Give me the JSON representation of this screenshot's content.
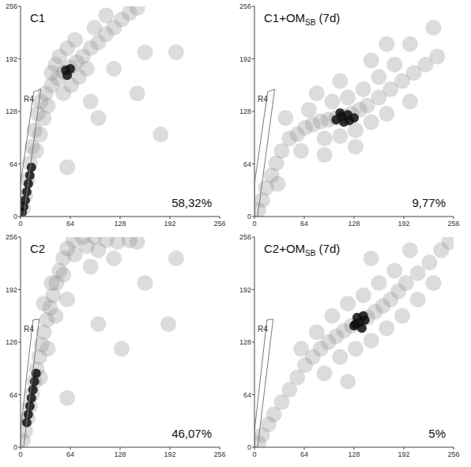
{
  "chart_data": [
    {
      "type": "scatter",
      "title": "C1",
      "annotation": "58,32%",
      "xlim": [
        0,
        256
      ],
      "ylim": [
        0,
        256
      ],
      "xticks": [
        0,
        64,
        128,
        192,
        256
      ],
      "yticks": [
        0,
        64,
        128,
        192,
        256
      ],
      "gate": {
        "label": "R4",
        "x": [
          0,
          0,
          17,
          26,
          4
        ],
        "y": [
          0,
          40,
          152,
          155,
          0
        ]
      },
      "series": [
        {
          "color": "#8c8c8c",
          "x": [
            3,
            6,
            9,
            12,
            15,
            18,
            22,
            26,
            32,
            40,
            48,
            56,
            64,
            72,
            80,
            90,
            100,
            110,
            120,
            130,
            140,
            150,
            50,
            60,
            45,
            75,
            85,
            40,
            70,
            95,
            110,
            55,
            65,
            35,
            30,
            25,
            20,
            100,
            150,
            180,
            60,
            120,
            200,
            90,
            160
          ],
          "values": [
            10,
            25,
            45,
            65,
            85,
            105,
            125,
            140,
            150,
            160,
            168,
            176,
            182,
            188,
            195,
            205,
            212,
            222,
            230,
            240,
            248,
            254,
            195,
            205,
            185,
            170,
            180,
            175,
            215,
            230,
            245,
            150,
            160,
            135,
            120,
            100,
            80,
            120,
            150,
            100,
            60,
            180,
            200,
            140,
            200
          ]
        },
        {
          "color": "#111111",
          "x": [
            2,
            4,
            6,
            8,
            10,
            12,
            14,
            58,
            64,
            60
          ],
          "values": [
            5,
            12,
            20,
            30,
            40,
            50,
            60,
            178,
            180,
            172
          ]
        }
      ]
    },
    {
      "type": "scatter",
      "title": "C1+OMSB (7d)",
      "title_subscript": "SB",
      "annotation": "9,77%",
      "xlim": [
        0,
        256
      ],
      "ylim": [
        0,
        256
      ],
      "xticks": [
        0,
        64,
        128,
        192,
        256
      ],
      "yticks": [
        0,
        64,
        128,
        192,
        256
      ],
      "gate": {
        "label": "R4",
        "x": [
          0,
          0,
          17,
          26,
          4
        ],
        "y": [
          0,
          40,
          152,
          155,
          0
        ]
      },
      "series": [
        {
          "color": "#8c8c8c",
          "x": [
            5,
            10,
            15,
            22,
            28,
            35,
            45,
            55,
            65,
            75,
            85,
            95,
            105,
            115,
            125,
            135,
            145,
            160,
            175,
            190,
            205,
            220,
            235,
            100,
            120,
            140,
            160,
            180,
            90,
            110,
            130,
            150,
            170,
            70,
            80,
            110,
            150,
            200,
            60,
            90,
            130,
            200,
            230,
            170,
            40,
            30
          ],
          "values": [
            8,
            20,
            35,
            50,
            65,
            80,
            95,
            100,
            108,
            112,
            116,
            118,
            120,
            122,
            125,
            130,
            135,
            145,
            155,
            165,
            175,
            185,
            195,
            140,
            145,
            155,
            170,
            185,
            95,
            98,
            105,
            115,
            125,
            130,
            150,
            165,
            190,
            210,
            80,
            75,
            85,
            140,
            230,
            210,
            120,
            40
          ]
        },
        {
          "color": "#111111",
          "x": [
            105,
            112,
            120,
            128,
            115,
            110,
            122
          ],
          "values": [
            118,
            122,
            124,
            120,
            115,
            126,
            117
          ]
        }
      ]
    },
    {
      "type": "scatter",
      "title": "C2",
      "annotation": "46,07%",
      "xlim": [
        0,
        256
      ],
      "ylim": [
        0,
        256
      ],
      "xticks": [
        0,
        64,
        128,
        192,
        256
      ],
      "yticks": [
        0,
        64,
        128,
        192,
        256
      ],
      "gate": {
        "label": "R4",
        "x": [
          0,
          0,
          16,
          24,
          4
        ],
        "y": [
          0,
          20,
          155,
          156,
          0
        ]
      },
      "series": [
        {
          "color": "#8c8c8c",
          "x": [
            3,
            6,
            9,
            12,
            15,
            18,
            21,
            24,
            27,
            30,
            34,
            38,
            42,
            46,
            50,
            55,
            60,
            68,
            80,
            95,
            110,
            125,
            140,
            70,
            85,
            100,
            40,
            30,
            55,
            45,
            35,
            25,
            60,
            90,
            120,
            150,
            100,
            160,
            200,
            130,
            190,
            60
          ],
          "values": [
            8,
            20,
            35,
            50,
            65,
            80,
            95,
            110,
            125,
            140,
            155,
            170,
            185,
            200,
            215,
            230,
            242,
            252,
            256,
            256,
            252,
            250,
            252,
            235,
            245,
            240,
            200,
            175,
            210,
            160,
            120,
            85,
            180,
            220,
            230,
            250,
            150,
            200,
            230,
            120,
            150,
            60
          ]
        },
        {
          "color": "#111111",
          "x": [
            8,
            10,
            12,
            14,
            16,
            18,
            20
          ],
          "values": [
            30,
            40,
            50,
            60,
            70,
            80,
            90
          ]
        }
      ]
    },
    {
      "type": "scatter",
      "title": "C2+OMSB (7d)",
      "title_subscript": "SB",
      "annotation": "5%",
      "xlim": [
        0,
        256
      ],
      "ylim": [
        0,
        256
      ],
      "xticks": [
        0,
        64,
        128,
        192,
        256
      ],
      "yticks": [
        0,
        64,
        128,
        192,
        256
      ],
      "gate": {
        "label": "R4",
        "x": [
          0,
          0,
          16,
          24,
          4
        ],
        "y": [
          0,
          20,
          155,
          156,
          0
        ]
      },
      "series": [
        {
          "color": "#8c8c8c",
          "x": [
            5,
            10,
            18,
            25,
            35,
            45,
            55,
            65,
            75,
            85,
            95,
            105,
            115,
            125,
            135,
            145,
            155,
            165,
            175,
            185,
            195,
            210,
            225,
            240,
            250,
            100,
            120,
            140,
            160,
            180,
            110,
            130,
            150,
            170,
            190,
            210,
            80,
            90,
            60,
            200,
            230,
            150,
            120
          ],
          "values": [
            5,
            15,
            28,
            40,
            55,
            70,
            85,
            100,
            110,
            120,
            128,
            135,
            142,
            148,
            152,
            158,
            165,
            172,
            180,
            190,
            200,
            212,
            225,
            240,
            250,
            160,
            175,
            185,
            200,
            215,
            110,
            120,
            130,
            145,
            160,
            180,
            140,
            90,
            120,
            240,
            200,
            230,
            80
          ]
        },
        {
          "color": "#111111",
          "x": [
            128,
            135,
            142,
            132,
            138,
            130,
            140
          ],
          "values": [
            148,
            152,
            155,
            158,
            145,
            150,
            160
          ]
        }
      ]
    }
  ]
}
